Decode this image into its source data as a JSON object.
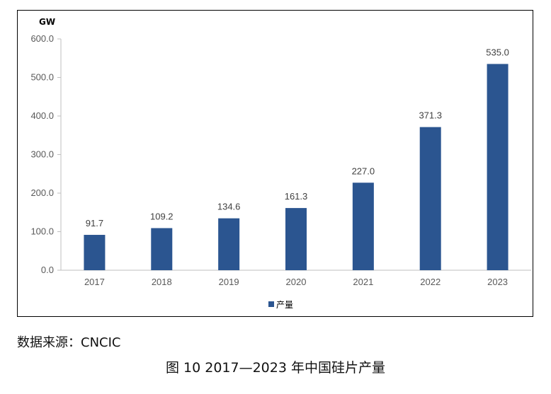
{
  "chart_data": {
    "type": "bar",
    "unit": "GW",
    "categories": [
      "2017",
      "2018",
      "2019",
      "2020",
      "2021",
      "2022",
      "2023"
    ],
    "series": [
      {
        "name": "产量",
        "values": [
          91.7,
          109.2,
          134.6,
          161.3,
          227.0,
          371.3,
          535.0
        ],
        "color": "#2B5590"
      }
    ],
    "value_labels": [
      "91.7",
      "109.2",
      "134.6",
      "161.3",
      "227.0",
      "371.3",
      "535.0"
    ],
    "y_ticks": [
      "0.0",
      "100.0",
      "200.0",
      "300.0",
      "400.0",
      "500.0",
      "600.0"
    ],
    "ylim": [
      0,
      600
    ],
    "grid": false,
    "legend_position": "bottom"
  },
  "source_note": "数据来源：CNCIC",
  "caption": "图 10  2017—2023 年中国硅片产量"
}
